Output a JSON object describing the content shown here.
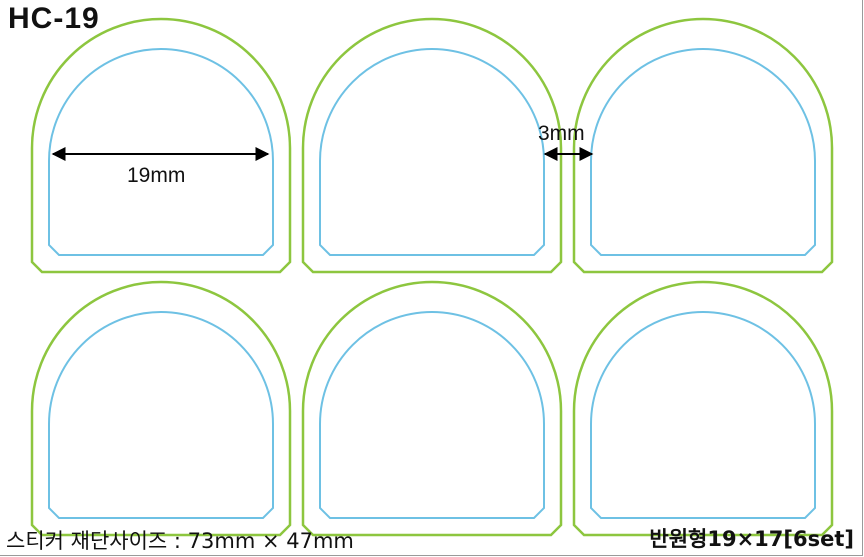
{
  "title": "HC-19",
  "colors": {
    "cut_line": "#8dc63f",
    "print_line": "#6ec1e4",
    "dimension": "#000000"
  },
  "stickers": {
    "rows": 2,
    "columns": 3
  },
  "dimensions": {
    "width_label": "19mm",
    "gap_label": "3mm"
  },
  "footer": {
    "left": "스티커 재단사이즈 : 73mm × 47mm",
    "right": "반원형19×17[6set]"
  }
}
